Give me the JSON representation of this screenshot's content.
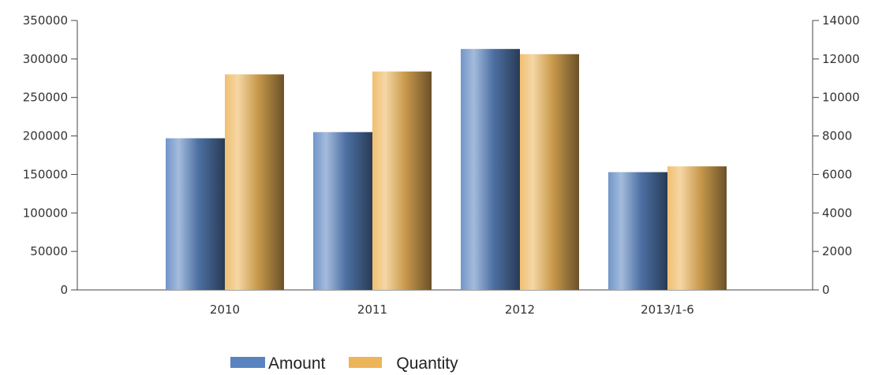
{
  "chart_data": {
    "type": "bar",
    "categories": [
      "2010",
      "2011",
      "2012",
      "2013/1-6"
    ],
    "series": [
      {
        "name": "Amount",
        "axis": "left",
        "color": "#5A84C0",
        "values": [
          197000,
          205000,
          313000,
          153000
        ]
      },
      {
        "name": "Quantity",
        "axis": "right",
        "color": "#EDB559",
        "values": [
          11200,
          11350,
          12250,
          6420
        ]
      }
    ],
    "y_left": {
      "range": [
        0,
        350000
      ],
      "ticks": [
        "0",
        "50000",
        "100000",
        "150000",
        "200000",
        "250000",
        "300000",
        "350000"
      ]
    },
    "y_right": {
      "range": [
        0,
        14000
      ],
      "ticks": [
        "0",
        "2000",
        "4000",
        "6000",
        "8000",
        "10000",
        "12000",
        "14000"
      ]
    },
    "grid": false,
    "legend_position": "bottom-center"
  }
}
